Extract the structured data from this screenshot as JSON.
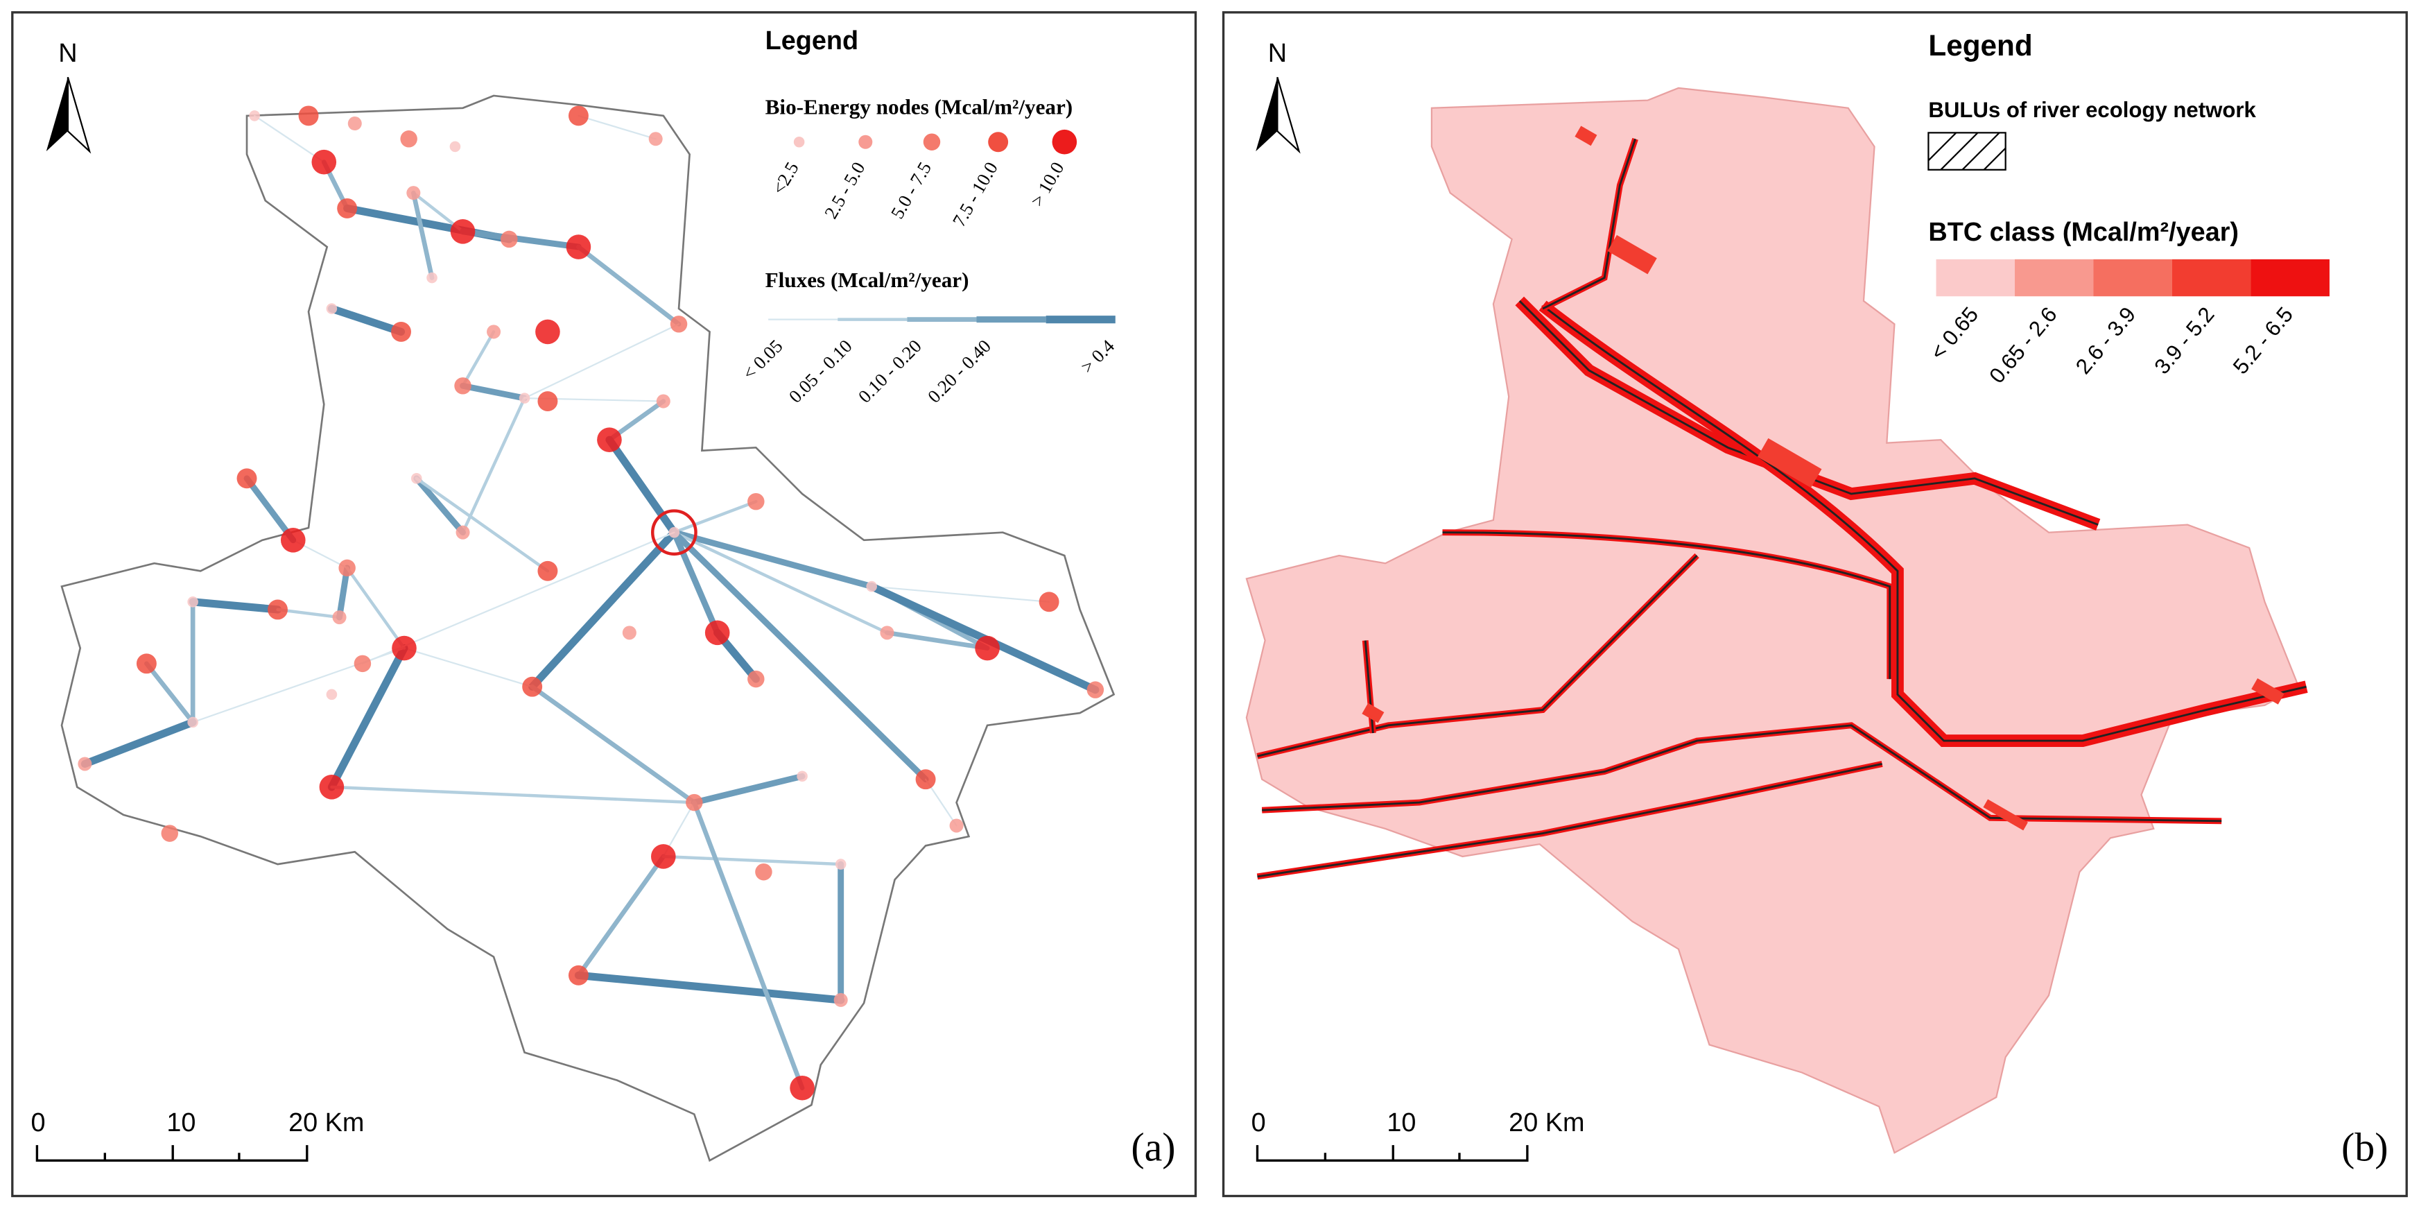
{
  "panels": [
    {
      "north": "N",
      "legend_title": "Legend",
      "nodes_title": "Bio-Energy nodes (Mcal/m²/year)",
      "node_classes": [
        {
          "label": "<2.5",
          "color": "#f9c6c4"
        },
        {
          "label": "2.5 - 5.0",
          "color": "#f79b93"
        },
        {
          "label": "5.0 - 7.5",
          "color": "#f47a6c"
        },
        {
          "label": "7.5 - 10.0",
          "color": "#f04f40"
        },
        {
          "label": "> 10.0",
          "color": "#ec1c1c"
        }
      ],
      "fluxes_title": "Fluxes (Mcal/m²/year)",
      "flux_classes": [
        {
          "label": "< 0.05",
          "color": "#d6e6ee"
        },
        {
          "label": "0.05 - 0.10",
          "color": "#b3cfdf"
        },
        {
          "label": "0.10 - 0.20",
          "color": "#8fb5cc"
        },
        {
          "label": "0.20 - 0.40",
          "color": "#6d9dbb"
        },
        {
          "label": "> 0.4",
          "color": "#4f86ab"
        }
      ],
      "scale_labels": [
        "0",
        "10",
        "20 Km"
      ],
      "panel_label": "(a)"
    },
    {
      "north": "N",
      "legend_title": "Legend",
      "bulus_title": "BULUs of river ecology network",
      "btc_title": "BTC class (Mcal/m²/year)",
      "btc_classes": [
        {
          "label": "< 0.65",
          "color": "#fbcaca"
        },
        {
          "label": "0.65 - 2.6",
          "color": "#f8998f"
        },
        {
          "label": "2.6 - 3.9",
          "color": "#f56f60"
        },
        {
          "label": "3.9 - 5.2",
          "color": "#f23d30"
        },
        {
          "label": "5.2 - 6.5",
          "color": "#ee1111"
        }
      ],
      "scale_labels": [
        "0",
        "10",
        "20 Km"
      ],
      "panel_label": "(b)"
    }
  ]
}
